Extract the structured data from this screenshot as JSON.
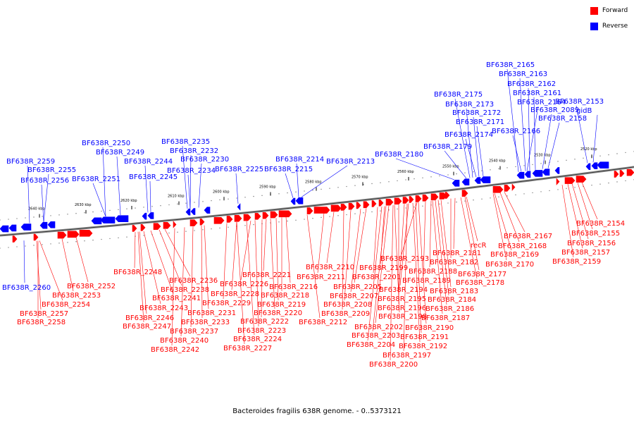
{
  "legend": {
    "forward": {
      "label": "Forward",
      "color": "#ff0000"
    },
    "reverse": {
      "label": "Reverse",
      "color": "#0000ff"
    }
  },
  "caption": "Bacteroides fragilis 638R genome. - 0..5373121",
  "ruler_ticks": [
    "2640 kbp",
    "2630 kbp",
    "2620 kbp",
    "2610 kbp",
    "2600 kbp",
    "2590 kbp",
    "2580 kbp",
    "2570 kbp",
    "2560 kbp",
    "2550 kbp",
    "2540 kbp",
    "2530 kbp",
    "2520 kbp"
  ],
  "reverse_labels": [
    "BF638R_2259",
    "BF638R_2255",
    "BF638R_2256",
    "BF638R_2251",
    "BF638R_2250",
    "BF638R_2249",
    "BF638R_2244",
    "BF638R_2245",
    "BF638R_2235",
    "BF638R_2232",
    "BF638R_2230",
    "BF638R_2234",
    "BF638R_2225",
    "BF638R_2214",
    "BF638R_2215",
    "BF638R_2213",
    "BF638R_2180",
    "BF638R_2179",
    "BF638R_2175",
    "BF638R_2173",
    "BF638R_2172",
    "BF638R_2171",
    "BF638R_2174",
    "BF638R_2165",
    "BF638R_2163",
    "BF638R_2162",
    "BF638R_2161",
    "BF638R_2164",
    "BF638R_2089",
    "BF638R_2158",
    "BF638R_2166",
    "BF638R_2153",
    "gidB",
    "BF638R_2260"
  ],
  "forward_labels": [
    "BF638R_2248",
    "BF638R_2252",
    "BF638R_2253",
    "BF638R_2254",
    "BF638R_2257",
    "BF638R_2258",
    "BF638R_2236",
    "BF638R_2238",
    "BF638R_2241",
    "BF638R_2243",
    "BF638R_2246",
    "BF638R_2247",
    "BF638R_2231",
    "BF638R_2233",
    "BF638R_2237",
    "BF638R_2240",
    "BF638R_2242",
    "BF638R_2221",
    "BF638R_2226",
    "BF638R_2228",
    "BF638R_2229",
    "BF638R_2222",
    "BF638R_2223",
    "BF638R_2224",
    "BF638R_2227",
    "BF638R_2216",
    "BF638R_2218",
    "BF638R_2219",
    "BF638R_2220",
    "BF638R_2210",
    "BF638R_2211",
    "BF638R_2212",
    "BF638R_2205",
    "BF638R_2207",
    "BF638R_2208",
    "BF638R_2209",
    "BF638R_2199",
    "BF638R_2201",
    "BF638R_2202",
    "BF638R_2203",
    "BF638R_2204",
    "BF638R_2193",
    "BF638R_2194",
    "BF638R_2195",
    "BF638R_2196",
    "BF638R_2198",
    "BF638R_2200",
    "BF638R_2188",
    "BF638R_2189",
    "BF638R_2190",
    "BF638R_2191",
    "BF638R_2192",
    "BF638R_2197",
    "BF638R_2181",
    "BF638R_2182",
    "BF638R_2183",
    "BF638R_2184",
    "BF638R_2186",
    "BF638R_2187",
    "recR",
    "BF638R_2177",
    "BF638R_2178",
    "BF638R_2167",
    "BF638R_2168",
    "BF638R_2169",
    "BF638R_2170",
    "BF638R_2154",
    "BF638R_2155",
    "BF638R_2156",
    "BF638R_2157",
    "BF638R_2159"
  ]
}
